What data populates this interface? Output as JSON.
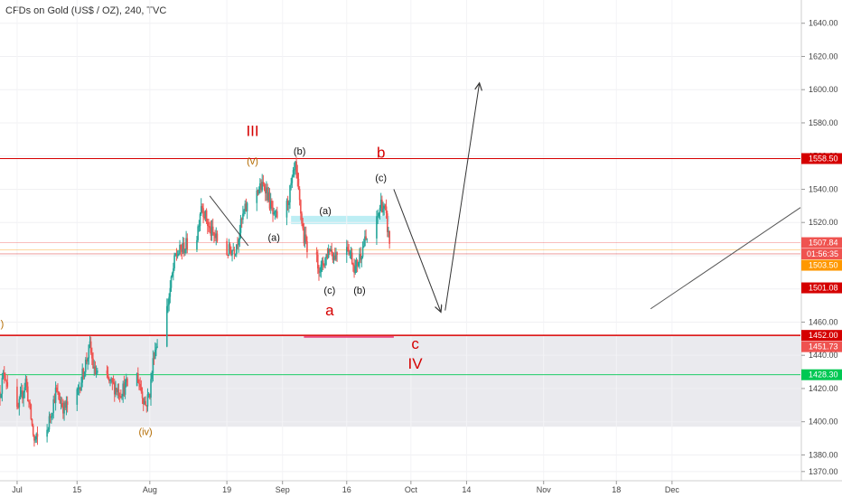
{
  "title": "CFDs on Gold (US$ / OZ), 240, TVC",
  "colors": {
    "up": "#26a69a",
    "down": "#ef5350",
    "accent_red": "#d50000",
    "orange": "#ff9800",
    "green": "#00c853",
    "cyan": "#80deea",
    "pink": "#e91e63",
    "zone": "#e6e6eb"
  },
  "chart_data": {
    "type": "candlestick",
    "ylim": [
      1365,
      1654
    ],
    "y_ticks": [
      "1370.00",
      "1380.00",
      "1400.00",
      "1420.00",
      "1440.00",
      "1460.00",
      "1480.00",
      "1500.00",
      "1520.00",
      "1540.00",
      "1560.00",
      "1580.00",
      "1600.00",
      "1620.00",
      "1640.00"
    ],
    "x_range": [
      "2019-06-27",
      "2019-12-31"
    ],
    "x_ticks": [
      {
        "date": "2019-07-01",
        "label": "Jul"
      },
      {
        "date": "2019-07-15",
        "label": "15"
      },
      {
        "date": "2019-08-01",
        "label": "Aug"
      },
      {
        "date": "2019-08-19",
        "label": "19"
      },
      {
        "date": "2019-09-01",
        "label": "Sep"
      },
      {
        "date": "2019-09-16",
        "label": "16"
      },
      {
        "date": "2019-10-01",
        "label": "Oct"
      },
      {
        "date": "2019-10-14",
        "label": "14"
      },
      {
        "date": "2019-11-01",
        "label": "Nov"
      },
      {
        "date": "2019-11-18",
        "label": "18"
      },
      {
        "date": "2019-12-01",
        "label": "Dec"
      }
    ],
    "price_path": [
      [
        "2019-06-27",
        1418
      ],
      [
        "2019-06-28",
        1430
      ],
      [
        "2019-07-01",
        1405
      ],
      [
        "2019-07-03",
        1425
      ],
      [
        "2019-07-05",
        1388
      ],
      [
        "2019-07-08",
        1395
      ],
      [
        "2019-07-10",
        1418
      ],
      [
        "2019-07-12",
        1408
      ],
      [
        "2019-07-15",
        1416
      ],
      [
        "2019-07-18",
        1445
      ],
      [
        "2019-07-19",
        1430
      ],
      [
        "2019-07-22",
        1425
      ],
      [
        "2019-07-25",
        1418
      ],
      [
        "2019-07-29",
        1428
      ],
      [
        "2019-07-31",
        1410
      ],
      [
        "2019-08-01",
        1418
      ],
      [
        "2019-08-02",
        1442
      ],
      [
        "2019-08-05",
        1468
      ],
      [
        "2019-08-07",
        1500
      ],
      [
        "2019-08-09",
        1505
      ],
      [
        "2019-08-12",
        1512
      ],
      [
        "2019-08-13",
        1532
      ],
      [
        "2019-08-15",
        1515
      ],
      [
        "2019-08-19",
        1502
      ],
      [
        "2019-08-21",
        1505
      ],
      [
        "2019-08-23",
        1526
      ],
      [
        "2019-08-26",
        1540
      ],
      [
        "2019-08-28",
        1542
      ],
      [
        "2019-08-30",
        1522
      ],
      [
        "2019-09-02",
        1530
      ],
      [
        "2019-09-04",
        1553
      ],
      [
        "2019-09-06",
        1510
      ],
      [
        "2019-09-10",
        1492
      ],
      [
        "2019-09-12",
        1505
      ],
      [
        "2019-09-13",
        1500
      ],
      [
        "2019-09-16",
        1508
      ],
      [
        "2019-09-18",
        1492
      ],
      [
        "2019-09-20",
        1507
      ],
      [
        "2019-09-23",
        1520
      ],
      [
        "2019-09-24",
        1532
      ],
      [
        "2019-09-25",
        1526
      ],
      [
        "2019-09-26",
        1508
      ]
    ],
    "horizontal_lines": [
      {
        "price": 1558.5,
        "label": "1558.50",
        "color": "#d50000"
      },
      {
        "price": 1507.84,
        "label": "1507.84",
        "color": "#ef5350"
      },
      {
        "price": 1503.5,
        "label": "1503.50",
        "color": "#ff9800"
      },
      {
        "price": 1501.08,
        "label": "1501.08",
        "color": "#d50000"
      },
      {
        "price": 1452.0,
        "label": "1452.00",
        "color": "#d50000"
      },
      {
        "price": 1451.73,
        "label": "1451.73",
        "color": "#ef5350"
      },
      {
        "price": 1428.3,
        "label": "1428.30",
        "color": "#00c853"
      }
    ],
    "countdown_label": "01:56:35",
    "zones": [
      {
        "from": "2019-06-27",
        "to": "2019-12-31",
        "low": 1397,
        "high": 1452,
        "color": "#e6e6eb"
      },
      {
        "from": "2019-09-03",
        "to": "2019-09-26",
        "low": 1519,
        "high": 1524,
        "color": "#b2ebf2"
      }
    ],
    "wave_labels": [
      {
        "text": "III",
        "date": "2019-08-25",
        "price": 1572,
        "color": "#d50000",
        "size": "big"
      },
      {
        "text": "(v)",
        "date": "2019-08-25",
        "price": 1555,
        "color": "#b36b00",
        "size": "small"
      },
      {
        "text": "(b)",
        "date": "2019-09-05",
        "price": 1561,
        "color": "#111",
        "size": "small"
      },
      {
        "text": "b",
        "date": "2019-09-24",
        "price": 1559,
        "color": "#d50000",
        "size": "big"
      },
      {
        "text": "(c)",
        "date": "2019-09-24",
        "price": 1545,
        "color": "#111",
        "size": "small"
      },
      {
        "text": "(a)",
        "date": "2019-09-11",
        "price": 1525,
        "color": "#111",
        "size": "small"
      },
      {
        "text": "(a)",
        "date": "2019-08-30",
        "price": 1509,
        "color": "#111",
        "size": "small"
      },
      {
        "text": "(c)",
        "date": "2019-09-12",
        "price": 1477,
        "color": "#111",
        "size": "small"
      },
      {
        "text": "(b)",
        "date": "2019-09-19",
        "price": 1477,
        "color": "#111",
        "size": "small"
      },
      {
        "text": "a",
        "date": "2019-09-12",
        "price": 1464,
        "color": "#d50000",
        "size": "big"
      },
      {
        "text": "c",
        "date": "2019-10-02",
        "price": 1444,
        "color": "#d50000",
        "size": "big"
      },
      {
        "text": "IV",
        "date": "2019-10-02",
        "price": 1432,
        "color": "#d50000",
        "size": "big"
      },
      {
        "text": "(iv)",
        "date": "2019-07-31",
        "price": 1392,
        "color": "#b36b00",
        "size": "small"
      },
      {
        "text": "ii)",
        "date": "2019-06-27",
        "price": 1457,
        "color": "#b36b00",
        "size": "small"
      }
    ],
    "trend_lines": [
      {
        "from": [
          "2019-08-15",
          "1536"
        ],
        "to": [
          "2019-08-24",
          "1506"
        ],
        "color": "#444"
      },
      {
        "from": [
          "2019-09-27",
          "1540"
        ],
        "to": [
          "2019-10-08",
          "1466"
        ],
        "color": "#333",
        "arrow": true
      },
      {
        "from": [
          "2019-10-09",
          "1467"
        ],
        "to": [
          "2019-10-17",
          "1604"
        ],
        "color": "#333",
        "arrow": true
      },
      {
        "from": [
          "2019-11-26",
          "1468"
        ],
        "to": [
          "2019-12-31",
          "1529"
        ],
        "color": "#555"
      },
      {
        "from": [
          "2019-09-06",
          "1451"
        ],
        "to": [
          "2019-09-27",
          "1451"
        ],
        "color": "#e91e63"
      }
    ]
  }
}
